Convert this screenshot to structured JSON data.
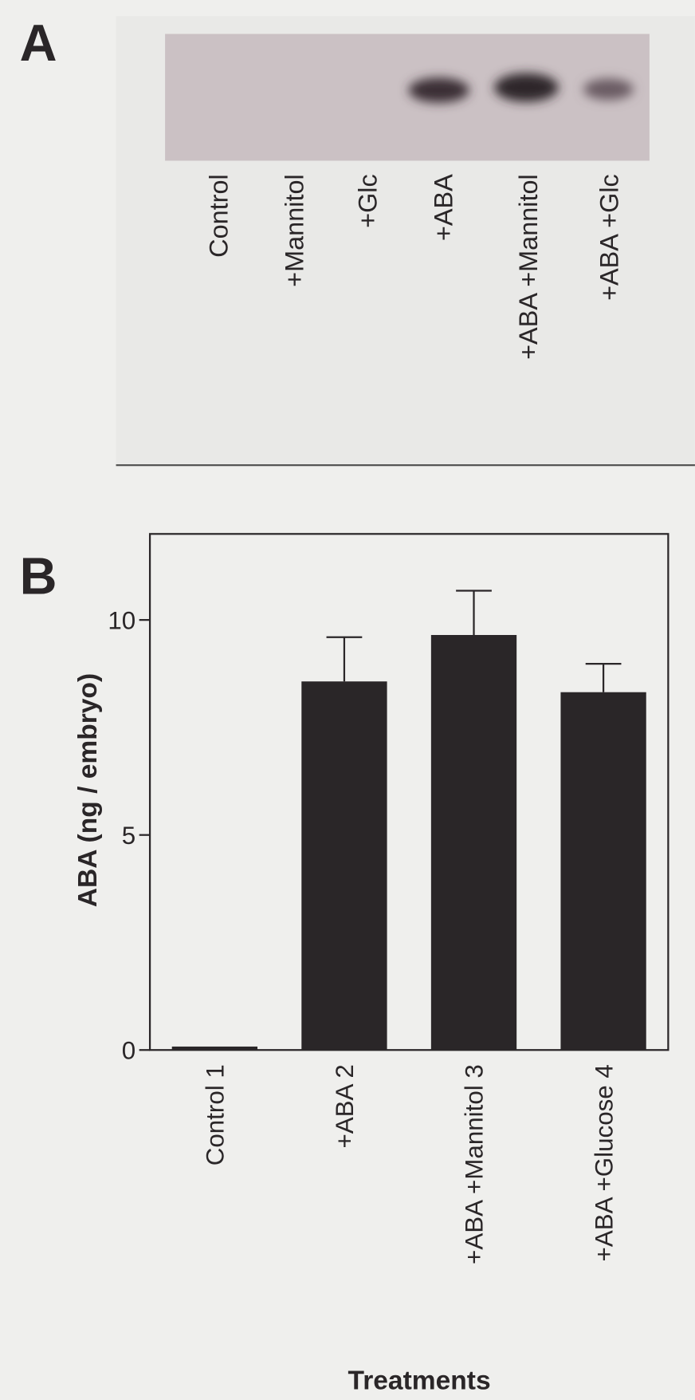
{
  "panel_a": {
    "label": "A",
    "lanes": [
      "Control",
      "+Mannitol",
      "+Glc",
      "+ABA",
      "+ABA +Mannitol",
      "+ABA +Glc"
    ]
  },
  "chart_data": {
    "type": "bar",
    "panel_label": "B",
    "y_label": "ABA (ng / embryo)",
    "x_label": "Treatments",
    "categories": [
      "Control 1",
      "+ABA 2",
      "+ABA +Mannitol 3",
      "+ABA +Glucose 4"
    ],
    "values": [
      0.08,
      8.57,
      9.65,
      8.32
    ],
    "errors": [
      null,
      1.03,
      1.03,
      0.66
    ],
    "color": "#2a2628",
    "ylim": [
      0,
      12
    ],
    "yticks": [
      0,
      5,
      10
    ]
  }
}
